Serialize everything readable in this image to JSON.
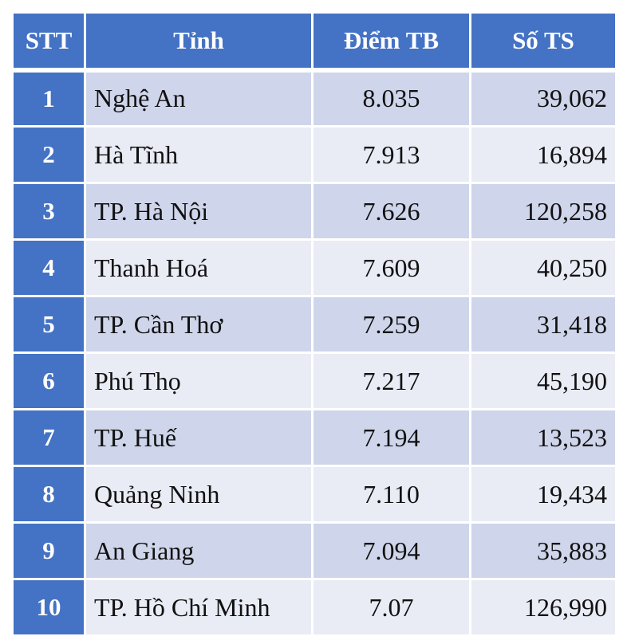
{
  "colors": {
    "header_bg": "#4472c4",
    "row_odd_bg": "#cfd5ea",
    "row_even_bg": "#e9ebf5",
    "header_text": "#ffffff"
  },
  "table": {
    "headers": [
      "STT",
      "Tỉnh",
      "Điểm TB",
      "Số TS"
    ],
    "rows": [
      {
        "stt": "1",
        "province": "Nghệ An",
        "score": "8.035",
        "count": "39,062"
      },
      {
        "stt": "2",
        "province": "Hà Tĩnh",
        "score": "7.913",
        "count": "16,894"
      },
      {
        "stt": "3",
        "province": "TP. Hà Nội",
        "score": "7.626",
        "count": "120,258"
      },
      {
        "stt": "4",
        "province": "Thanh Hoá",
        "score": "7.609",
        "count": "40,250"
      },
      {
        "stt": "5",
        "province": "TP. Cần Thơ",
        "score": "7.259",
        "count": "31,418"
      },
      {
        "stt": "6",
        "province": "Phú Thọ",
        "score": "7.217",
        "count": "45,190"
      },
      {
        "stt": "7",
        "province": "TP. Huế",
        "score": "7.194",
        "count": "13,523"
      },
      {
        "stt": "8",
        "province": "Quảng Ninh",
        "score": "7.110",
        "count": "19,434"
      },
      {
        "stt": "9",
        "province": "An Giang",
        "score": "7.094",
        "count": "35,883"
      },
      {
        "stt": "10",
        "province": "TP. Hồ Chí Minh",
        "score": "7.07",
        "count": "126,990"
      }
    ]
  }
}
